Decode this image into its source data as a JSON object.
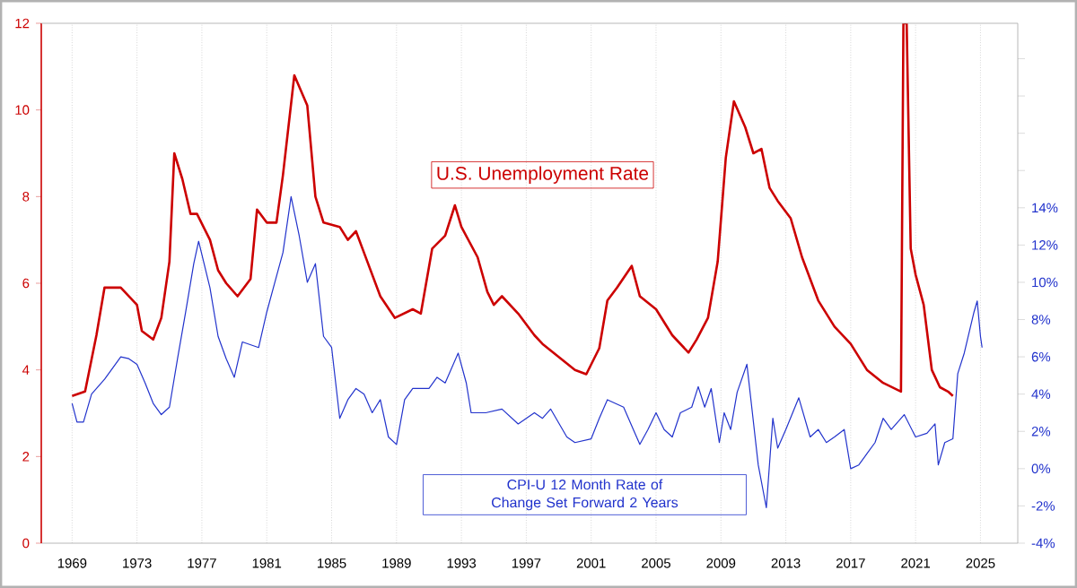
{
  "chart_data": {
    "type": "line",
    "xlim": [
      1967.1,
      2027.3
    ],
    "xticks": [
      1969,
      1973,
      1977,
      1981,
      1985,
      1989,
      1993,
      1997,
      2001,
      2005,
      2009,
      2013,
      2017,
      2021,
      2025
    ],
    "ylim": [
      0,
      12
    ],
    "yticks": [
      0,
      2,
      4,
      6,
      8,
      10,
      12
    ],
    "y2lim": [
      -4,
      23.9
    ],
    "y2ticks": [
      {
        "value": -4,
        "label": "-4%"
      },
      {
        "value": -2,
        "label": "-2%"
      },
      {
        "value": 0,
        "label": "0%"
      },
      {
        "value": 2,
        "label": "2%"
      },
      {
        "value": 4,
        "label": "4%"
      },
      {
        "value": 6,
        "label": "6%"
      },
      {
        "value": 8,
        "label": "8%"
      },
      {
        "value": 10,
        "label": "10%"
      },
      {
        "value": 12,
        "label": "12%"
      },
      {
        "value": 14,
        "label": "14%"
      },
      {
        "value": 16,
        "label": null
      },
      {
        "value": 18,
        "label": null
      },
      {
        "value": 20,
        "label": null
      },
      {
        "value": 22,
        "label": null
      }
    ],
    "grid": "x",
    "series": [
      {
        "name": "U.S. Unemployment Rate",
        "color": "#cc0000",
        "axis": "y",
        "x": [
          1969.0,
          1969.8,
          1970.5,
          1971.0,
          1972.0,
          1973.0,
          1973.3,
          1974.0,
          1974.5,
          1975.0,
          1975.3,
          1975.8,
          1976.3,
          1976.7,
          1977.5,
          1978.0,
          1978.5,
          1979.2,
          1980.0,
          1980.4,
          1981.0,
          1981.6,
          1982.0,
          1982.7,
          1983.5,
          1984.0,
          1984.5,
          1985.5,
          1986.0,
          1986.5,
          1987.0,
          1988.0,
          1988.9,
          1990.0,
          1990.5,
          1991.2,
          1992.0,
          1992.6,
          1993.0,
          1994.0,
          1994.6,
          1995.0,
          1995.5,
          1996.5,
          1997.5,
          1998.0,
          1999.0,
          2000.0,
          2000.7,
          2001.5,
          2002.0,
          2002.6,
          2003.5,
          2004.0,
          2005.0,
          2006.0,
          2007.0,
          2007.5,
          2008.2,
          2008.8,
          2009.3,
          2009.8,
          2010.5,
          2011.0,
          2011.5,
          2012.0,
          2012.5,
          2013.3,
          2014.0,
          2015.0,
          2016.0,
          2017.0,
          2018.0,
          2019.0,
          2020.1,
          2020.25,
          2020.45,
          2020.7,
          2021.0,
          2021.5,
          2022.0,
          2022.5,
          2023.0,
          2023.3
        ],
        "values": [
          3.4,
          3.5,
          4.8,
          5.9,
          5.9,
          5.5,
          4.9,
          4.7,
          5.2,
          6.5,
          9.0,
          8.4,
          7.6,
          7.6,
          7.0,
          6.3,
          6.0,
          5.7,
          6.1,
          7.7,
          7.4,
          7.4,
          8.5,
          10.8,
          10.1,
          8.0,
          7.4,
          7.3,
          7.0,
          7.2,
          6.7,
          5.7,
          5.2,
          5.4,
          5.3,
          6.8,
          7.1,
          7.8,
          7.3,
          6.6,
          5.8,
          5.5,
          5.7,
          5.3,
          4.8,
          4.6,
          4.3,
          4.0,
          3.9,
          4.5,
          5.6,
          5.9,
          6.4,
          5.7,
          5.4,
          4.8,
          4.4,
          4.7,
          5.2,
          6.5,
          8.9,
          10.2,
          9.6,
          9.0,
          9.1,
          8.2,
          7.9,
          7.5,
          6.6,
          5.6,
          5.0,
          4.6,
          4.0,
          3.7,
          3.5,
          12,
          12,
          6.8,
          6.2,
          5.5,
          4.0,
          3.6,
          3.5,
          3.4
        ]
      },
      {
        "name": "CPI-U 12 Month Rate of Change Set Forward 2 Years",
        "color": "#2233cc",
        "axis": "y2",
        "x": [
          1969.0,
          1969.3,
          1969.7,
          1970.2,
          1971.0,
          1972.0,
          1972.5,
          1973.0,
          1973.5,
          1974.0,
          1974.5,
          1975.0,
          1975.5,
          1976.0,
          1976.5,
          1976.8,
          1977.5,
          1978.0,
          1978.5,
          1979.0,
          1979.5,
          1980.5,
          1981.0,
          1981.5,
          1982.0,
          1982.5,
          1983.0,
          1983.5,
          1984.0,
          1984.5,
          1985.0,
          1985.5,
          1986.0,
          1986.5,
          1987.0,
          1987.5,
          1988.0,
          1988.5,
          1989.0,
          1989.5,
          1990.0,
          1991.0,
          1991.5,
          1992.0,
          1992.8,
          1993.3,
          1993.6,
          1994.5,
          1995.5,
          1996.5,
          1997.5,
          1998.0,
          1998.5,
          1999.5,
          2000.0,
          2001.0,
          2001.5,
          2002.0,
          2003.0,
          2003.6,
          2004.0,
          2004.5,
          2005.0,
          2005.5,
          2006.0,
          2006.5,
          2007.2,
          2007.6,
          2008.0,
          2008.4,
          2008.9,
          2009.2,
          2009.6,
          2010.0,
          2010.6,
          2010.9,
          2011.3,
          2011.8,
          2012.2,
          2012.5,
          2013.0,
          2013.8,
          2014.5,
          2015.0,
          2015.5,
          2016.0,
          2016.6,
          2017.0,
          2017.5,
          2018.0,
          2018.5,
          2019.0,
          2019.5,
          2020.3,
          2021.0,
          2021.7,
          2022.2,
          2022.4,
          2022.8,
          2023.3,
          2023.6,
          2024.0,
          2024.6,
          2024.8,
          2025.0,
          2025.1
        ],
        "values": [
          3.5,
          2.5,
          2.5,
          4.0,
          4.8,
          6.0,
          5.9,
          5.6,
          4.6,
          3.5,
          2.9,
          3.3,
          5.9,
          8.4,
          11.0,
          12.2,
          9.7,
          7.1,
          5.9,
          4.9,
          6.8,
          6.5,
          8.4,
          10.0,
          11.6,
          14.6,
          12.5,
          10.0,
          11.0,
          7.1,
          6.5,
          2.7,
          3.7,
          4.3,
          4.0,
          3.0,
          3.7,
          1.7,
          1.3,
          3.7,
          4.3,
          4.3,
          4.9,
          4.6,
          6.2,
          4.6,
          3.0,
          3.0,
          3.2,
          2.4,
          3.0,
          2.7,
          3.2,
          1.7,
          1.4,
          1.6,
          2.7,
          3.7,
          3.3,
          2.1,
          1.3,
          2.1,
          3.0,
          2.1,
          1.7,
          3.0,
          3.3,
          4.4,
          3.3,
          4.3,
          1.4,
          3.0,
          2.1,
          4.1,
          5.6,
          3.3,
          0.2,
          -2.1,
          2.7,
          1.1,
          2.1,
          3.8,
          1.7,
          2.1,
          1.4,
          1.7,
          2.1,
          0.0,
          0.2,
          0.8,
          1.4,
          2.7,
          2.1,
          2.9,
          1.7,
          1.9,
          2.4,
          0.2,
          1.4,
          1.6,
          5.1,
          6.2,
          8.4,
          9.0,
          7.1,
          6.5
        ]
      }
    ]
  }
}
